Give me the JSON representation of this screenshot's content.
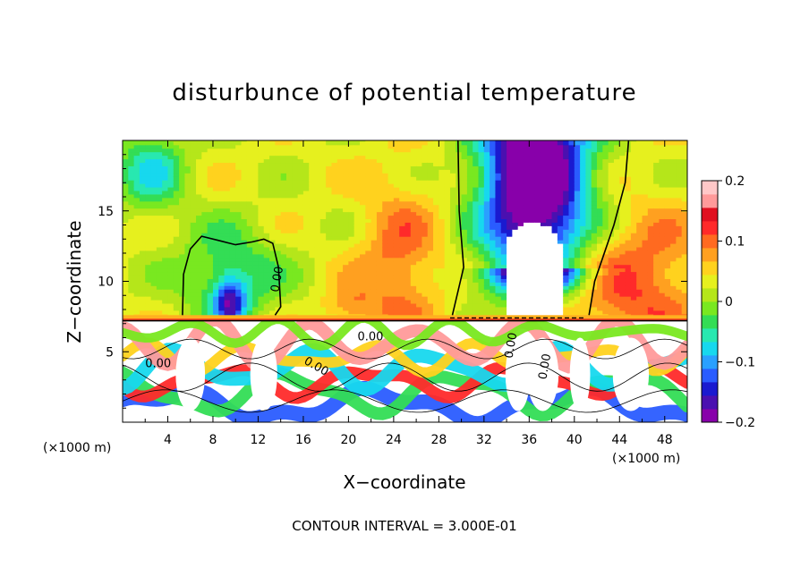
{
  "chart_data": {
    "type": "heatmap",
    "title": "disturbunce of potential temperature",
    "xlabel": "X−coordinate",
    "ylabel": "Z−coordinate",
    "x_unit": "(×1000 m)",
    "y_unit": "(×1000 m)",
    "xlim": [
      0,
      50
    ],
    "ylim": [
      0,
      20
    ],
    "x_ticks": [
      4,
      8,
      12,
      16,
      20,
      24,
      28,
      32,
      36,
      40,
      44,
      48
    ],
    "x_tick_labels": [
      "4",
      "8",
      "12",
      "16",
      "20",
      "24",
      "28",
      "32",
      "36",
      "40",
      "44",
      "48"
    ],
    "y_ticks": [
      5,
      10,
      15
    ],
    "y_tick_labels": [
      "5",
      "10",
      "15"
    ],
    "colorbar": {
      "range": [
        -0.2,
        0.2
      ],
      "ticks": [
        0.2,
        0.1,
        0,
        -0.1,
        -0.2
      ],
      "tick_labels": [
        "0.2",
        "0.1",
        "0",
        "−0.1",
        "−0.2"
      ],
      "colors": [
        "#8800aa",
        "#4a10b0",
        "#1a1ad0",
        "#2a5cff",
        "#2aa0ff",
        "#17d8ee",
        "#28e8b0",
        "#33dd55",
        "#79e820",
        "#b5e61a",
        "#e6f01e",
        "#ffd21e",
        "#ffa020",
        "#ff6a20",
        "#ff2a2a",
        "#e01020",
        "#ff9a9a",
        "#ffc8c8"
      ]
    },
    "contour_labels": [
      "0.00",
      "0.00",
      "0.00",
      "0.00",
      "0.00",
      "0.00"
    ],
    "footer": "CONTOUR INTERVAL =  3.000E-01"
  }
}
